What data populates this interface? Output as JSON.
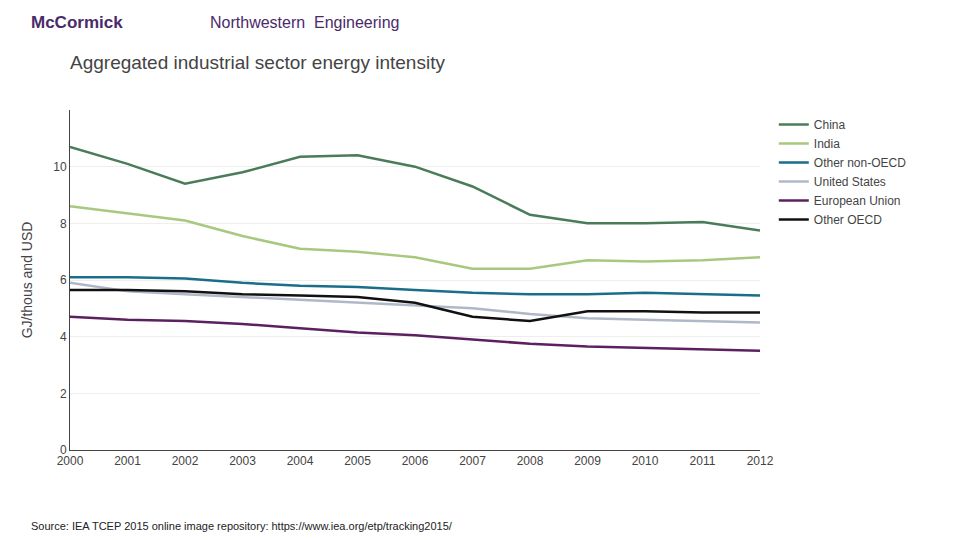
{
  "chart_data": {
    "type": "line",
    "title": "Aggregated industrial sector energy intensity",
    "ylabel": "GJ/thous and USD",
    "annotations": [
      "McCormick",
      "Northwestern  Engineering",
      "Source: IEA TCEP 2015 online image repository: https://www.iea.org/etp/tracking2015/"
    ],
    "x": [
      2000,
      2001,
      2002,
      2003,
      2004,
      2005,
      2006,
      2007,
      2008,
      2009,
      2010,
      2011,
      2012
    ],
    "series": [
      {
        "name": "China",
        "color": "#4a7c59",
        "values": [
          10.7,
          10.1,
          9.4,
          9.8,
          10.35,
          10.4,
          10.0,
          9.3,
          8.3,
          8.0,
          8.0,
          8.05,
          7.75
        ]
      },
      {
        "name": "India",
        "color": "#a8c880",
        "values": [
          8.6,
          8.35,
          8.1,
          7.55,
          7.1,
          7.0,
          6.8,
          6.4,
          6.4,
          6.7,
          6.65,
          6.7,
          6.8
        ]
      },
      {
        "name": "Other non-OECD",
        "color": "#1a6e8a",
        "values": [
          6.1,
          6.1,
          6.05,
          5.9,
          5.8,
          5.75,
          5.65,
          5.55,
          5.5,
          5.5,
          5.55,
          5.5,
          5.45
        ]
      },
      {
        "name": "United States",
        "color": "#b0b8c8",
        "values": [
          5.9,
          5.6,
          5.5,
          5.4,
          5.3,
          5.2,
          5.1,
          5.0,
          4.8,
          4.65,
          4.6,
          4.55,
          4.5
        ]
      },
      {
        "name": "European Union",
        "color": "#5c2060",
        "values": [
          4.7,
          4.6,
          4.55,
          4.45,
          4.3,
          4.15,
          4.05,
          3.9,
          3.75,
          3.65,
          3.6,
          3.55,
          3.5
        ]
      },
      {
        "name": "Other OECD",
        "color": "#111111",
        "values": [
          5.65,
          5.65,
          5.6,
          5.5,
          5.45,
          5.4,
          5.2,
          4.7,
          4.55,
          4.9,
          4.9,
          4.85,
          4.85
        ]
      }
    ],
    "xlim": [
      2000,
      2012
    ],
    "xticks": [
      2000,
      2001,
      2002,
      2003,
      2004,
      2005,
      2006,
      2007,
      2008,
      2009,
      2010,
      2011,
      2012
    ],
    "ylim": [
      0,
      12
    ],
    "yticks": [
      0,
      2,
      4,
      6,
      8,
      10
    ],
    "grid": true,
    "legend": "right"
  }
}
